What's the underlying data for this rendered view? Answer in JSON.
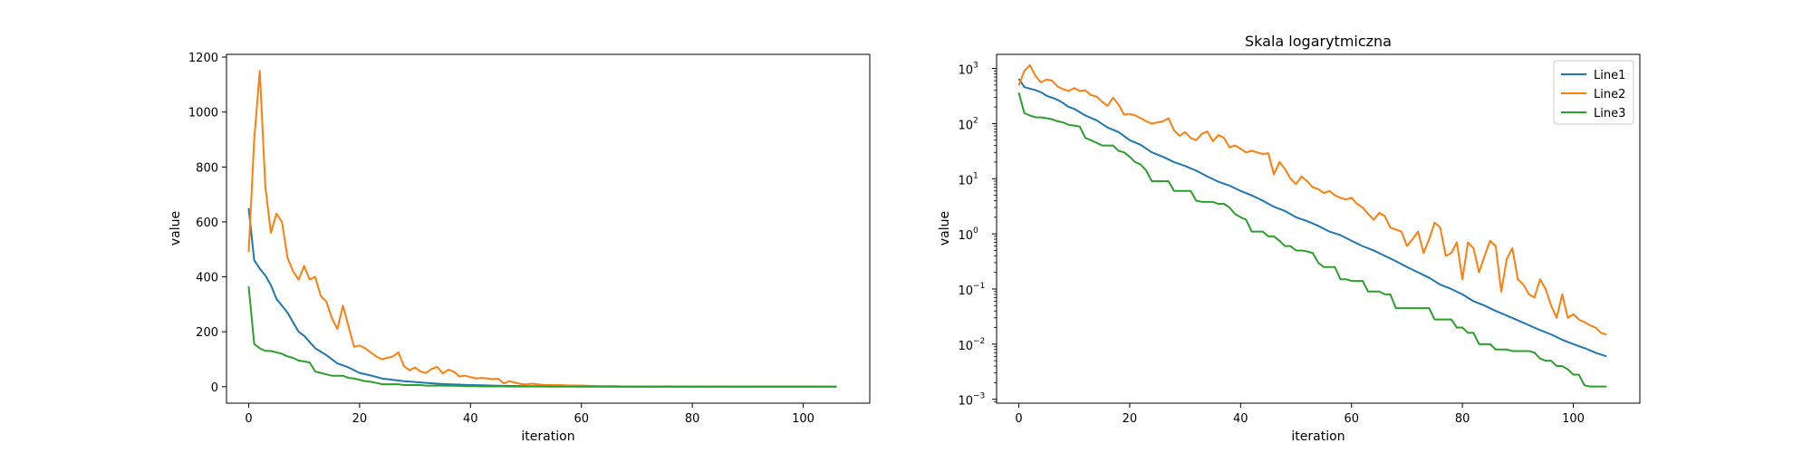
{
  "colors": {
    "line1": "#1f77b4",
    "line2": "#ff7f0e",
    "line3": "#2ca02c"
  },
  "chart_data": [
    {
      "type": "line",
      "title": "",
      "xlabel": "iteration",
      "ylabel": "value",
      "xlim": [
        -4,
        112
      ],
      "ylim": [
        -60,
        1210
      ],
      "xticks": [
        0,
        20,
        40,
        60,
        80,
        100
      ],
      "yticks": [
        0,
        200,
        400,
        600,
        800,
        1000,
        1200
      ],
      "yscale": "linear",
      "grid": false,
      "legend": null,
      "series_ref": "shared_series"
    },
    {
      "type": "line",
      "title": "Skala logarytmiczna",
      "xlabel": "iteration",
      "ylabel": "value",
      "xlim": [
        -4,
        112
      ],
      "ylim": [
        0.00085,
        1800
      ],
      "xticks": [
        0,
        20,
        40,
        60,
        80,
        100
      ],
      "yticks": [
        0.001,
        0.01,
        0.1,
        1,
        10,
        100,
        1000
      ],
      "ytick_labels": [
        "10",
        "10",
        "10",
        "10",
        "10",
        "10",
        "10"
      ],
      "ytick_exponents": [
        "−3",
        "−2",
        "−1",
        "0",
        "1",
        "2",
        "3"
      ],
      "yscale": "log",
      "grid": false,
      "legend": "top-right",
      "series_ref": "shared_series"
    }
  ],
  "shared_series": [
    {
      "name": "Line1",
      "color_key": "line1",
      "x": [
        0,
        1,
        2,
        3,
        4,
        5,
        6,
        7,
        8,
        9,
        10,
        12,
        14,
        16,
        18,
        20,
        22,
        24,
        26,
        28,
        30,
        32,
        34,
        36,
        38,
        40,
        42,
        44,
        46,
        48,
        50,
        52,
        54,
        56,
        58,
        60,
        62,
        64,
        66,
        68,
        70,
        72,
        74,
        76,
        78,
        80,
        82,
        84,
        86,
        88,
        90,
        92,
        94,
        96,
        98,
        100,
        102,
        104,
        106
      ],
      "values": [
        650,
        460,
        430,
        405,
        370,
        320,
        295,
        270,
        235,
        200,
        185,
        140,
        115,
        85,
        70,
        50,
        41,
        30,
        25,
        20,
        17,
        14,
        11,
        8.8,
        7.5,
        6,
        5,
        4,
        3.1,
        2.6,
        2,
        1.7,
        1.4,
        1.1,
        0.95,
        0.75,
        0.6,
        0.5,
        0.4,
        0.32,
        0.25,
        0.2,
        0.16,
        0.12,
        0.1,
        0.08,
        0.06,
        0.05,
        0.04,
        0.033,
        0.027,
        0.022,
        0.018,
        0.015,
        0.012,
        0.01,
        0.0085,
        0.007,
        0.006
      ]
    },
    {
      "name": "Line2",
      "color_key": "line2",
      "x": [
        0,
        1,
        2,
        3,
        4,
        5,
        6,
        7,
        8,
        9,
        10,
        11,
        12,
        13,
        14,
        15,
        16,
        17,
        18,
        19,
        20,
        21,
        22,
        23,
        24,
        25,
        26,
        27,
        28,
        29,
        30,
        31,
        32,
        33,
        34,
        35,
        36,
        37,
        38,
        39,
        40,
        41,
        42,
        43,
        44,
        45,
        46,
        47,
        48,
        49,
        50,
        51,
        52,
        53,
        54,
        55,
        56,
        57,
        58,
        59,
        60,
        61,
        62,
        63,
        64,
        65,
        66,
        67,
        68,
        69,
        70,
        71,
        72,
        73,
        74,
        75,
        76,
        77,
        78,
        79,
        80,
        81,
        82,
        83,
        84,
        85,
        86,
        87,
        88,
        89,
        90,
        91,
        92,
        93,
        94,
        95,
        96,
        97,
        98,
        99,
        100,
        101,
        102,
        103,
        104,
        105,
        106
      ],
      "values": [
        490,
        900,
        1150,
        730,
        560,
        630,
        600,
        470,
        420,
        390,
        440,
        390,
        400,
        330,
        310,
        250,
        210,
        295,
        220,
        145,
        150,
        140,
        125,
        110,
        100,
        105,
        110,
        125,
        75,
        60,
        70,
        55,
        50,
        65,
        72,
        48,
        62,
        55,
        37,
        40,
        35,
        30,
        32,
        30,
        28,
        29,
        12,
        20,
        15,
        10,
        8,
        11,
        9,
        7,
        6.5,
        5.5,
        6,
        5,
        4.5,
        4.2,
        4.5,
        3.5,
        3,
        2.3,
        1.8,
        2.4,
        2.1,
        1.3,
        1.2,
        1.1,
        0.6,
        0.8,
        1.1,
        0.45,
        0.8,
        1.6,
        1.3,
        0.4,
        0.45,
        0.7,
        0.15,
        0.7,
        0.55,
        0.2,
        0.4,
        0.75,
        0.6,
        0.09,
        0.35,
        0.55,
        0.15,
        0.12,
        0.08,
        0.07,
        0.15,
        0.1,
        0.05,
        0.03,
        0.08,
        0.03,
        0.035,
        0.028,
        0.025,
        0.022,
        0.02,
        0.016,
        0.015
      ]
    },
    {
      "name": "Line3",
      "color_key": "line3",
      "x": [
        0,
        1,
        2,
        3,
        4,
        5,
        6,
        7,
        8,
        9,
        10,
        11,
        12,
        13,
        14,
        15,
        16,
        17,
        18,
        19,
        20,
        21,
        22,
        23,
        24,
        25,
        26,
        27,
        28,
        29,
        30,
        31,
        32,
        33,
        34,
        35,
        36,
        37,
        38,
        39,
        40,
        41,
        42,
        43,
        44,
        45,
        46,
        47,
        48,
        49,
        50,
        51,
        52,
        53,
        54,
        55,
        56,
        57,
        58,
        59,
        60,
        61,
        62,
        63,
        64,
        65,
        66,
        67,
        68,
        69,
        70,
        71,
        72,
        73,
        74,
        75,
        76,
        77,
        78,
        79,
        80,
        81,
        82,
        83,
        84,
        85,
        86,
        87,
        88,
        89,
        90,
        91,
        92,
        93,
        94,
        95,
        96,
        97,
        98,
        99,
        100,
        101,
        102,
        103,
        104,
        105,
        106
      ],
      "values": [
        365,
        155,
        140,
        130,
        130,
        125,
        120,
        110,
        105,
        95,
        92,
        88,
        55,
        50,
        45,
        40,
        40,
        40,
        32,
        30,
        25,
        20,
        18,
        14,
        9,
        9,
        9,
        9,
        6,
        6,
        6,
        6,
        4,
        3.8,
        3.8,
        3.8,
        3.5,
        3.5,
        3,
        2.3,
        2,
        1.8,
        1.1,
        1.1,
        1.1,
        0.9,
        0.9,
        0.75,
        0.6,
        0.6,
        0.5,
        0.5,
        0.48,
        0.45,
        0.3,
        0.25,
        0.25,
        0.25,
        0.15,
        0.15,
        0.14,
        0.14,
        0.14,
        0.09,
        0.09,
        0.09,
        0.08,
        0.08,
        0.045,
        0.045,
        0.045,
        0.045,
        0.045,
        0.045,
        0.045,
        0.028,
        0.028,
        0.028,
        0.028,
        0.02,
        0.02,
        0.016,
        0.016,
        0.01,
        0.01,
        0.01,
        0.008,
        0.008,
        0.008,
        0.0075,
        0.0075,
        0.0075,
        0.0075,
        0.007,
        0.0055,
        0.005,
        0.005,
        0.004,
        0.004,
        0.0035,
        0.0028,
        0.0028,
        0.0018,
        0.0017,
        0.0017,
        0.0017,
        0.0017
      ]
    }
  ]
}
